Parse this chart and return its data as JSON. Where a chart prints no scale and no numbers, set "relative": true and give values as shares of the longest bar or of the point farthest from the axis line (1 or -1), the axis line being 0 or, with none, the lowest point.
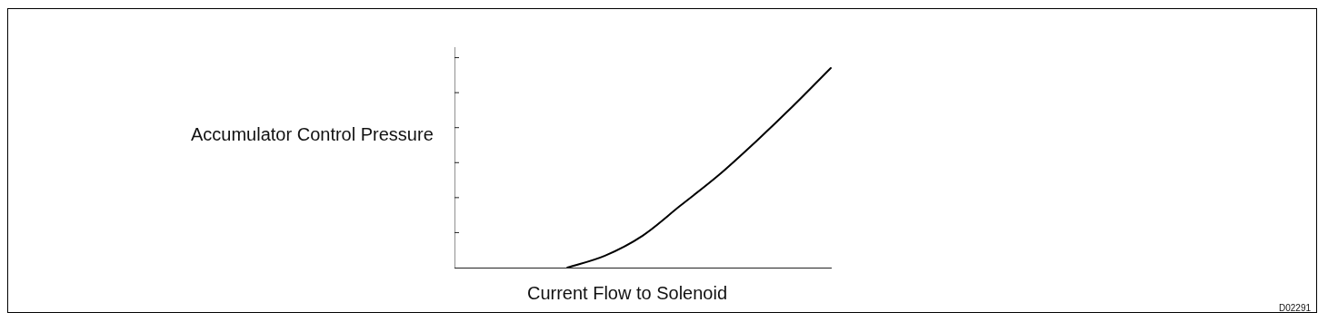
{
  "chart_data": {
    "type": "line",
    "xlabel": "Current Flow to Solenoid",
    "ylabel": "Accumulator Control Pressure",
    "annotations": [
      "D02291"
    ],
    "categories": [
      null,
      null,
      null,
      null,
      null,
      null,
      null,
      null,
      null,
      null,
      null
    ],
    "series": [
      {
        "color": "#000000",
        "values": [
          null,
          null,
          null,
          0,
          0.06,
          0.16,
          0.31,
          0.46,
          0.63,
          0.81,
          1
        ]
      }
    ],
    "relative": true,
    "tick_labels": false,
    "grid": false,
    "legend": false,
    "marker": "none",
    "line_style": "solid"
  }
}
